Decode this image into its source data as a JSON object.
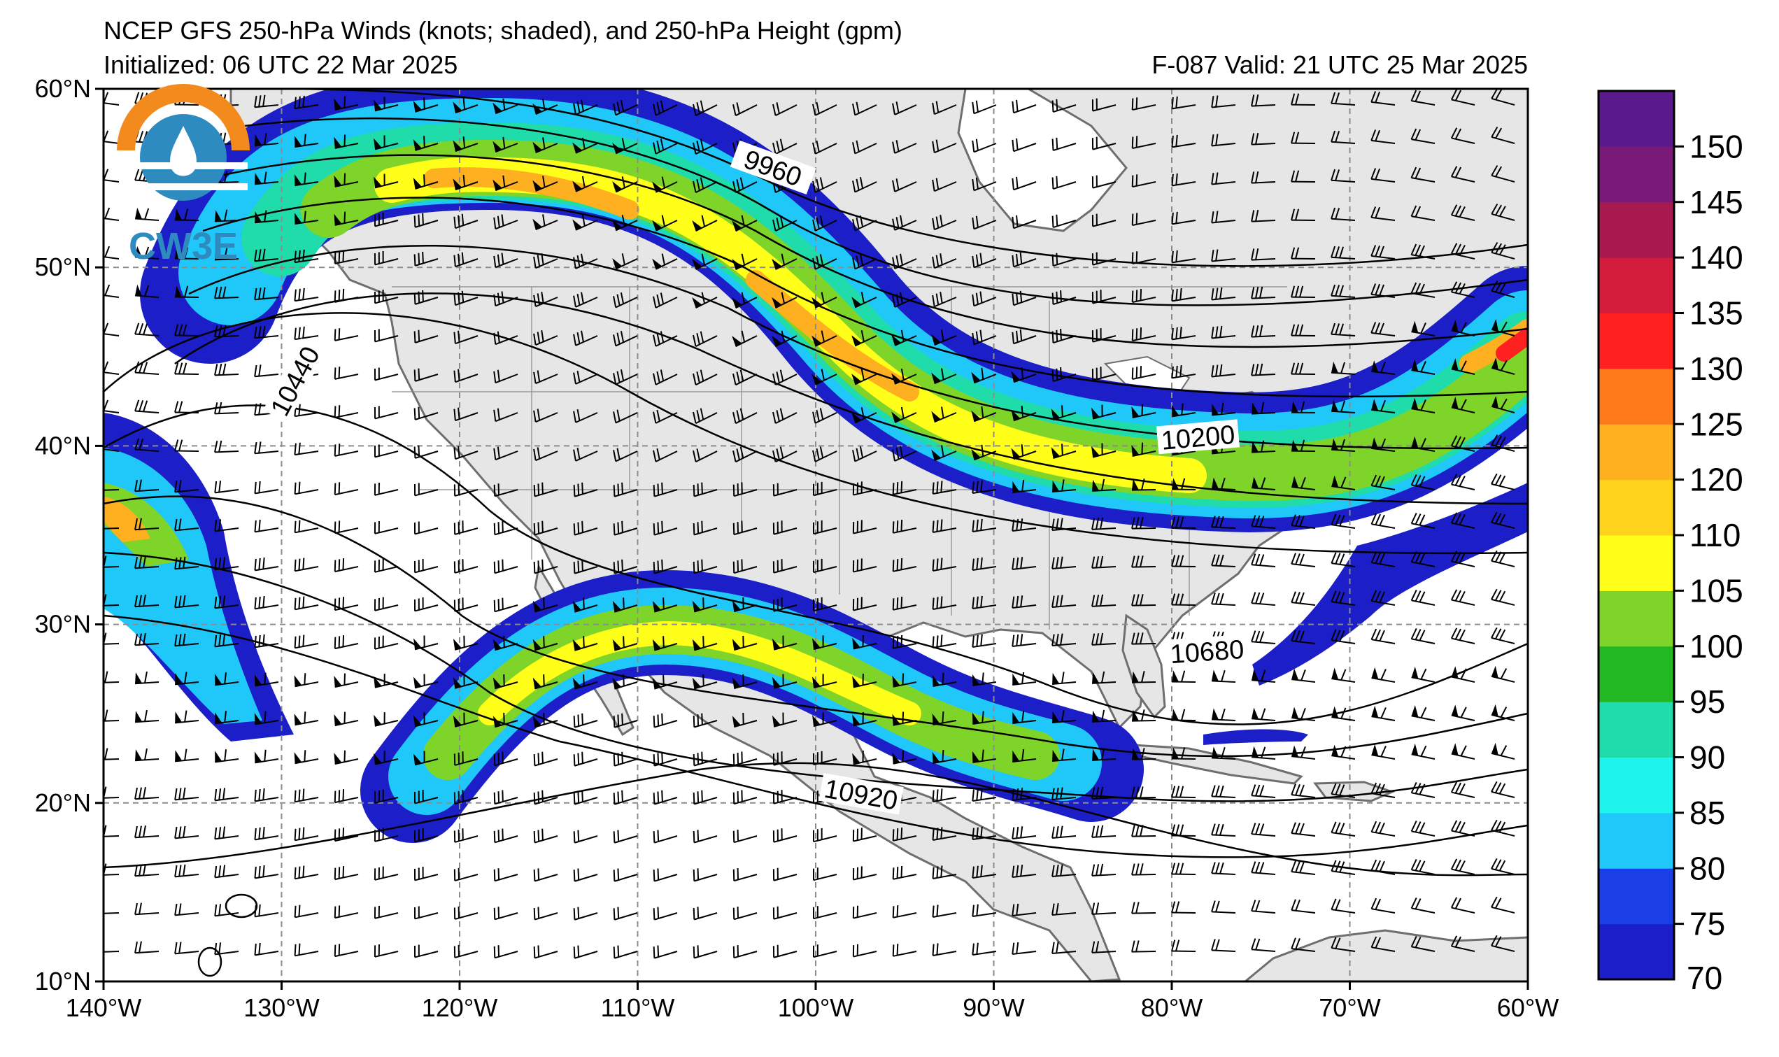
{
  "header": {
    "title": "NCEP GFS 250-hPa Winds (knots; shaded), and 250-hPa Height (gpm)",
    "initialized": "Initialized: 06 UTC 22 Mar 2025",
    "valid": "F-087  Valid: 21 UTC 25 Mar 2025"
  },
  "logo": {
    "text": "CW3E"
  },
  "map": {
    "lon_range": [
      -140,
      -60
    ],
    "lat_range": [
      10,
      60
    ],
    "lon_ticks": [
      {
        "lon": -140,
        "label": "140°W"
      },
      {
        "lon": -130,
        "label": "130°W"
      },
      {
        "lon": -120,
        "label": "120°W"
      },
      {
        "lon": -110,
        "label": "110°W"
      },
      {
        "lon": -100,
        "label": "100°W"
      },
      {
        "lon": -90,
        "label": "90°W"
      },
      {
        "lon": -80,
        "label": "80°W"
      },
      {
        "lon": -70,
        "label": "70°W"
      },
      {
        "lon": -60,
        "label": "60°W"
      }
    ],
    "lat_ticks": [
      {
        "lat": 60,
        "label": "60°N"
      },
      {
        "lat": 50,
        "label": "50°N"
      },
      {
        "lat": 40,
        "label": "40°N"
      },
      {
        "lat": 30,
        "label": "30°N"
      },
      {
        "lat": 20,
        "label": "20°N"
      },
      {
        "lat": 10,
        "label": "10°N"
      }
    ],
    "height_contours": [
      {
        "label": "9960",
        "label_at": [
          -102.5,
          55.3
        ]
      },
      {
        "label": "10200",
        "label_at": [
          -78.5,
          40.2
        ]
      },
      {
        "label": "10440",
        "label_at": [
          -129.0,
          43.5
        ]
      },
      {
        "label": "10680",
        "label_at": [
          -78.0,
          28.2
        ]
      },
      {
        "label": "10920",
        "label_at": [
          -97.5,
          20.2
        ]
      }
    ]
  },
  "colorbar": {
    "levels": [
      70,
      75,
      80,
      85,
      90,
      95,
      100,
      105,
      110,
      120,
      125,
      130,
      135,
      140,
      145,
      150
    ],
    "colors": [
      "#1c1ec8",
      "#1a3fe6",
      "#1fc8f8",
      "#1ef3ee",
      "#20dcaa",
      "#22b822",
      "#7fd42a",
      "#ffff1a",
      "#ffd21c",
      "#ffb020",
      "#ff7a1a",
      "#ff2020",
      "#d41c3c",
      "#a81a50",
      "#7a1a78",
      "#5a1a8c"
    ],
    "labels": [
      "70",
      "75",
      "80",
      "85",
      "90",
      "95",
      "100",
      "105",
      "110",
      "120",
      "125",
      "130",
      "135",
      "140",
      "145",
      "150"
    ]
  }
}
